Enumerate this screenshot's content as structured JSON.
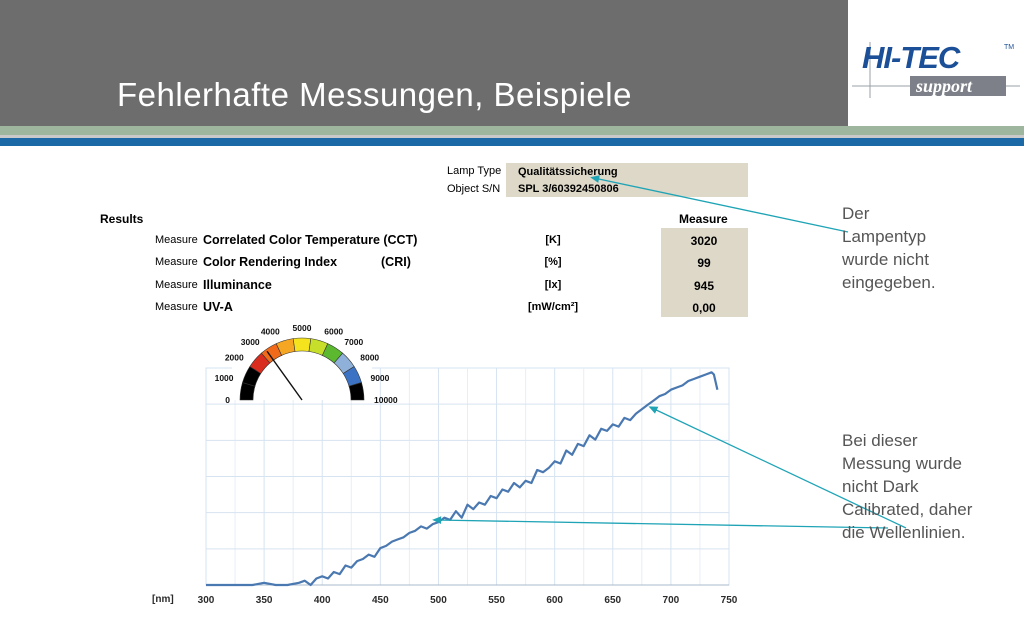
{
  "header": {
    "title": "Fehlerhafte Messungen, Beispiele"
  },
  "logo": {
    "brand": "HI-TEC",
    "tm": "TM",
    "sub": "support"
  },
  "info": {
    "lamp_type_label": "Lamp Type",
    "lamp_type_value": "Qualitätssicherung",
    "object_sn_label": "Object S/N",
    "object_sn_value": "SPL 3/60392450806"
  },
  "results": {
    "title": "Results",
    "column_header": "Measure",
    "rows": [
      {
        "prefix": "Measure",
        "name": "Correlated Color Temperature (CCT)",
        "abbr": "",
        "unit": "[K]",
        "value": "3020"
      },
      {
        "prefix": "Measure",
        "name": "Color Rendering Index",
        "abbr": "(CRI)",
        "unit": "[%]",
        "value": "99"
      },
      {
        "prefix": "Measure",
        "name": "Illuminance",
        "abbr": "",
        "unit": "[lx]",
        "value": "945"
      },
      {
        "prefix": "Measure",
        "name": "UV-A",
        "abbr": "",
        "unit": "[mW/cm²]",
        "value": "0,00"
      }
    ]
  },
  "gauge": {
    "labels": [
      "0",
      "1000",
      "2000",
      "3000",
      "4000",
      "5000",
      "6000",
      "7000",
      "8000",
      "9000",
      "10000"
    ],
    "value": 3020,
    "segment_colors": [
      "#000000",
      "#000000",
      "#d92b1e",
      "#f06a1a",
      "#f5a623",
      "#f5e31e",
      "#c7df2a",
      "#5cb82f",
      "#8fb0d8",
      "#3b72c4",
      "#000000"
    ]
  },
  "notes": {
    "note1": [
      "Der",
      "Lampentyp",
      "wurde nicht",
      "eingegeben."
    ],
    "note2": [
      "Bei dieser",
      "Messung wurde",
      "nicht Dark",
      "Calibrated, daher",
      "die Wellenlinien."
    ]
  },
  "chart_data": {
    "type": "line",
    "xlabel": "[nm]",
    "x_ticks": [
      300,
      350,
      400,
      450,
      500,
      550,
      600,
      650,
      700,
      750
    ],
    "xlim": [
      300,
      750
    ],
    "ylim": [
      0,
      1
    ],
    "grid": true,
    "series": [
      {
        "color": "#4a78b0",
        "x": [
          300,
          320,
          340,
          350,
          360,
          370,
          380,
          385,
          390,
          395,
          400,
          405,
          410,
          415,
          420,
          425,
          430,
          435,
          440,
          445,
          450,
          455,
          460,
          465,
          470,
          475,
          480,
          485,
          490,
          495,
          500,
          505,
          510,
          515,
          520,
          525,
          530,
          535,
          540,
          545,
          550,
          555,
          560,
          565,
          570,
          575,
          580,
          585,
          590,
          595,
          600,
          605,
          610,
          615,
          620,
          625,
          630,
          635,
          640,
          645,
          650,
          655,
          660,
          665,
          670,
          675,
          680,
          685,
          690,
          695,
          700,
          705,
          710,
          715,
          720,
          725,
          730,
          735,
          737,
          740
        ],
        "y": [
          0.0,
          0.0,
          0.0,
          0.01,
          0.0,
          0.0,
          0.01,
          0.02,
          0.0,
          0.03,
          0.04,
          0.03,
          0.06,
          0.05,
          0.09,
          0.08,
          0.11,
          0.12,
          0.14,
          0.13,
          0.17,
          0.18,
          0.2,
          0.21,
          0.22,
          0.24,
          0.25,
          0.27,
          0.26,
          0.28,
          0.29,
          0.31,
          0.3,
          0.34,
          0.31,
          0.37,
          0.35,
          0.38,
          0.37,
          0.41,
          0.4,
          0.44,
          0.43,
          0.47,
          0.45,
          0.48,
          0.47,
          0.53,
          0.52,
          0.54,
          0.57,
          0.56,
          0.62,
          0.6,
          0.65,
          0.64,
          0.69,
          0.67,
          0.72,
          0.71,
          0.74,
          0.73,
          0.77,
          0.76,
          0.79,
          0.81,
          0.83,
          0.85,
          0.87,
          0.88,
          0.9,
          0.91,
          0.92,
          0.94,
          0.95,
          0.96,
          0.97,
          0.98,
          0.97,
          0.9
        ]
      }
    ]
  }
}
